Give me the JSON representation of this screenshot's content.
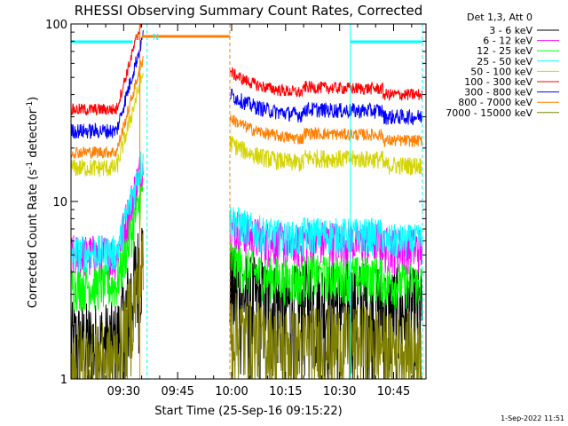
{
  "chart_data": {
    "type": "line",
    "title": "RHESSI Observing Summary Count Rates, Corrected",
    "xlabel": "Start Time (25-Sep-16 09:15:22)",
    "ylabel": "Corrected Count Rate (s",
    "ylabel_sup1": "-1",
    "ylabel_mid": " detector",
    "ylabel_sup2": "-1",
    "ylabel_end": ")",
    "y_scale": "log",
    "ylim": [
      1,
      100
    ],
    "xlim": [
      "09:15:22",
      "10:54:00"
    ],
    "x_ticks": [
      "09:30",
      "09:45",
      "10:00",
      "10:15",
      "10:30",
      "10:45"
    ],
    "y_ticks": [
      "1",
      "10",
      "100"
    ],
    "legend_title": "Det 1,3, Att 0",
    "legend_position": "right",
    "data_gap": [
      "09:35:30",
      "09:59:30"
    ],
    "markers": [
      {
        "label": "S",
        "time": "09:35:00",
        "color": "#ff7f00"
      },
      {
        "label": "N",
        "time": "09:36:30",
        "color": "#00ffff"
      }
    ],
    "top_bars": [
      {
        "color": "#00ffff",
        "start": "09:15:22",
        "end": "09:32:30"
      },
      {
        "color": "#ff7f00",
        "start": "09:35:00",
        "end": "09:59:30"
      },
      {
        "color": "#00ffff",
        "start": "10:33:00",
        "end": "10:53:00"
      }
    ],
    "vertical_lines": [
      {
        "time": "09:34:30",
        "color": "#ff7f00",
        "style": "solid"
      },
      {
        "time": "09:36:30",
        "color": "#00ffff",
        "style": "dashed"
      },
      {
        "time": "09:59:30",
        "color": "#ff7f00",
        "style": "dashed"
      },
      {
        "time": "10:33:00",
        "color": "#00ffff",
        "style": "solid"
      },
      {
        "time": "10:53:00",
        "color": "#00ffff",
        "style": "dashed"
      }
    ],
    "series": [
      {
        "name": "3 - 6 keV",
        "color": "#000000",
        "segment1_level": 1.6,
        "segment2_level": 2.5,
        "noise": 0.35
      },
      {
        "name": "6 - 12 keV",
        "color": "#ff00ff",
        "segment1_level": 5.0,
        "segment2_level": 5.5,
        "noise": 0.15
      },
      {
        "name": "12 - 25 keV",
        "color": "#00ff00",
        "segment1_level": 3.4,
        "segment2_level": 3.5,
        "noise": 0.15
      },
      {
        "name": "25 - 50 keV",
        "color": "#00ffff",
        "segment1_level": 5.2,
        "segment2_level": 6.0,
        "noise": 0.12
      },
      {
        "name": "50 - 100 keV",
        "color": "#d4d400",
        "segment1_level": 15.5,
        "segment2_level": 16.0,
        "noise": 0.06
      },
      {
        "name": "100 - 300 keV",
        "color": "#ff0000",
        "segment1_level": 33.0,
        "segment2_level": 40.0,
        "noise": 0.04
      },
      {
        "name": "300 - 800 keV",
        "color": "#0000ff",
        "segment1_level": 25.0,
        "segment2_level": 30.0,
        "noise": 0.05
      },
      {
        "name": "800 - 7000 keV",
        "color": "#ff7f00",
        "segment1_level": 19.0,
        "segment2_level": 22.0,
        "noise": 0.04
      },
      {
        "name": "7000 - 15000 keV",
        "color": "#808000",
        "segment1_level": 1.3,
        "segment2_level": 1.5,
        "noise": 0.3
      }
    ]
  },
  "footer": {
    "timestamp": "1-Sep-2022 11:51"
  }
}
